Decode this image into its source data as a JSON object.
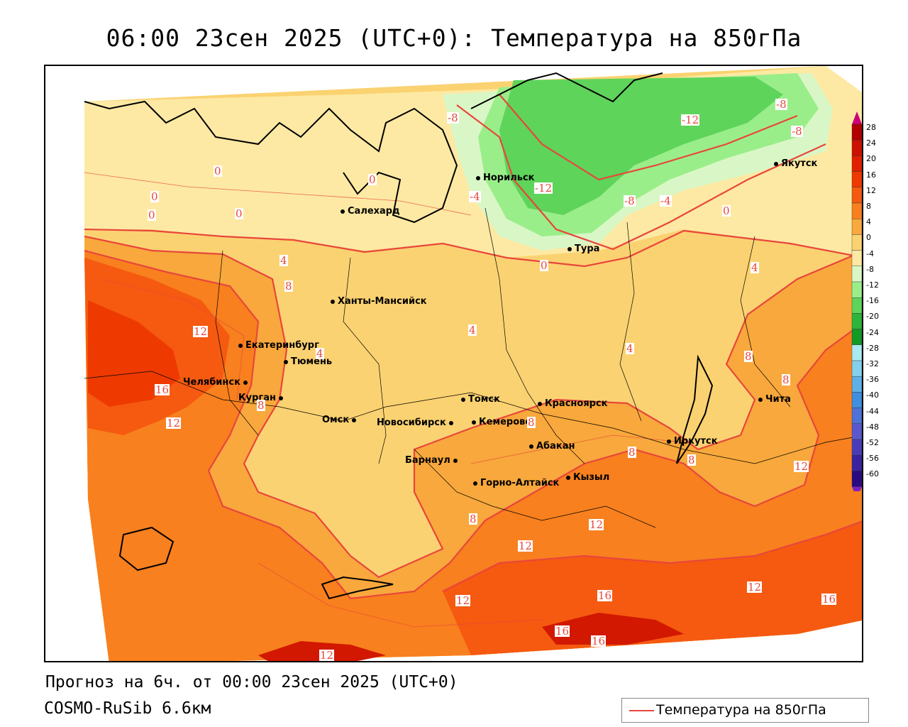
{
  "title": "06:00 23сен 2025 (UTC+0): Температура на 850гПа",
  "footer": {
    "forecast": "Прогноз на 6ч. от 00:00 23сен 2025 (UTC+0)",
    "model": "COSMO-RuSib 6.6км"
  },
  "legend": {
    "line_label": "Температура на 850гПа",
    "line_color": "#e8463c"
  },
  "colorbar": {
    "labels": [
      "28",
      "24",
      "20",
      "16",
      "12",
      "8",
      "4",
      "0",
      "-4",
      "-8",
      "-12",
      "-16",
      "-20",
      "-24",
      "-28",
      "-32",
      "-36",
      "-40",
      "-44",
      "-48",
      "-52",
      "-56",
      "-60"
    ],
    "colors": [
      "#b00000",
      "#cc1100",
      "#e02000",
      "#ee3a00",
      "#f55a10",
      "#f8801e",
      "#f8a83c",
      "#fbd271",
      "#fde9a3",
      "#d9f7c6",
      "#9aee8a",
      "#5ed45a",
      "#2db43a",
      "#119a26",
      "#a9e9f2",
      "#84cfee",
      "#5fb0e8",
      "#3f8ee0",
      "#4e72d8",
      "#5a58cc",
      "#4a3cb8",
      "#3a22a0",
      "#2a0a80"
    ]
  },
  "cities": [
    {
      "name": "Норильск"
    },
    {
      "name": "Якутск"
    },
    {
      "name": "Салехард"
    },
    {
      "name": "Тура"
    },
    {
      "name": "Ханты-Мансийск"
    },
    {
      "name": "Екатеринбург"
    },
    {
      "name": "Тюмень"
    },
    {
      "name": "Челябинск"
    },
    {
      "name": "Курган"
    },
    {
      "name": "Омск"
    },
    {
      "name": "Томск"
    },
    {
      "name": "Красноярск"
    },
    {
      "name": "Новосибирск"
    },
    {
      "name": "Кемерово"
    },
    {
      "name": "Абакан"
    },
    {
      "name": "Барнаул"
    },
    {
      "name": "Горно-Алтайск"
    },
    {
      "name": "Кызыл"
    },
    {
      "name": "Иркутск"
    },
    {
      "name": "Чита"
    }
  ],
  "contour_labels": [
    "0",
    "0",
    "0",
    "0",
    "0",
    "0",
    "0",
    "-8",
    "-4",
    "-12",
    "-8",
    "-4",
    "-12",
    "-8",
    "-8",
    "4",
    "8",
    "12",
    "4",
    "4",
    "4",
    "4",
    "8",
    "8",
    "8",
    "8",
    "12",
    "16",
    "12",
    "8",
    "8",
    "12",
    "12",
    "8",
    "12",
    "16",
    "12",
    "16",
    "16",
    "12",
    "16"
  ]
}
